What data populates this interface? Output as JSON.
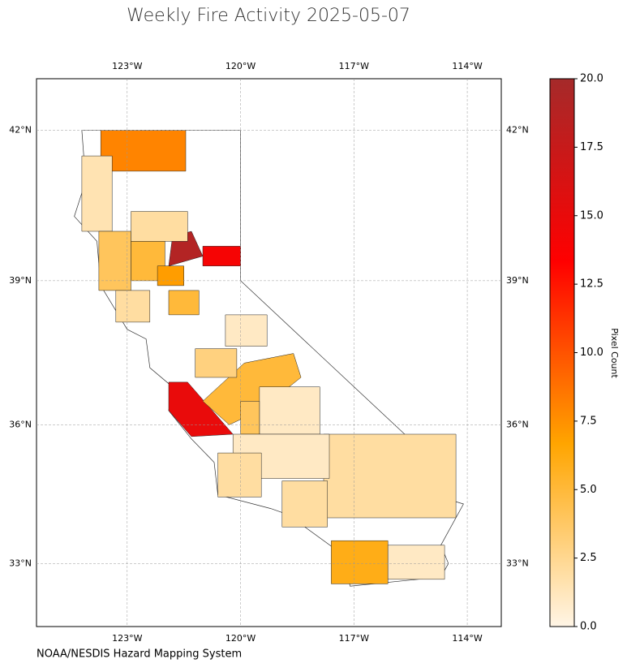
{
  "chart_data": {
    "type": "choropleth",
    "title": "Weekly Fire Activity 2025-05-07",
    "source": "NOAA/NESDIS Hazard Mapping System",
    "colorbar_label": "Pixel Count",
    "xlim": [
      -125.4,
      -113.1
    ],
    "ylim": [
      31.6,
      43.0
    ],
    "xticks": [
      {
        "value": -123,
        "label": "123°W"
      },
      {
        "value": -120,
        "label": "120°W"
      },
      {
        "value": -117,
        "label": "117°W"
      },
      {
        "value": -114,
        "label": "114°W"
      }
    ],
    "yticks": [
      {
        "value": 42,
        "label": "42°N"
      },
      {
        "value": 39,
        "label": "39°N"
      },
      {
        "value": 36,
        "label": "36°N"
      },
      {
        "value": 33,
        "label": "33°N"
      }
    ],
    "grid": true,
    "clim": [
      0,
      20
    ],
    "cticks": [
      {
        "value": 0,
        "label": "0.0"
      },
      2.5,
      {
        "value": 5,
        "label": "5.0"
      },
      7.5,
      {
        "value": 10,
        "label": "10.0"
      },
      12.5,
      {
        "value": 15,
        "label": "15.0"
      },
      17.5,
      {
        "value": 20,
        "label": "20.0"
      }
    ],
    "colormap": [
      "#fff5e6",
      "#ffa500",
      "#ff0000",
      "#a52a2a"
    ],
    "values": [
      8,
      1.5,
      4,
      2,
      5,
      19,
      14,
      7,
      2,
      15,
      5,
      1,
      4,
      2,
      2,
      1,
      6,
      1,
      2,
      5,
      3,
      1
    ]
  }
}
